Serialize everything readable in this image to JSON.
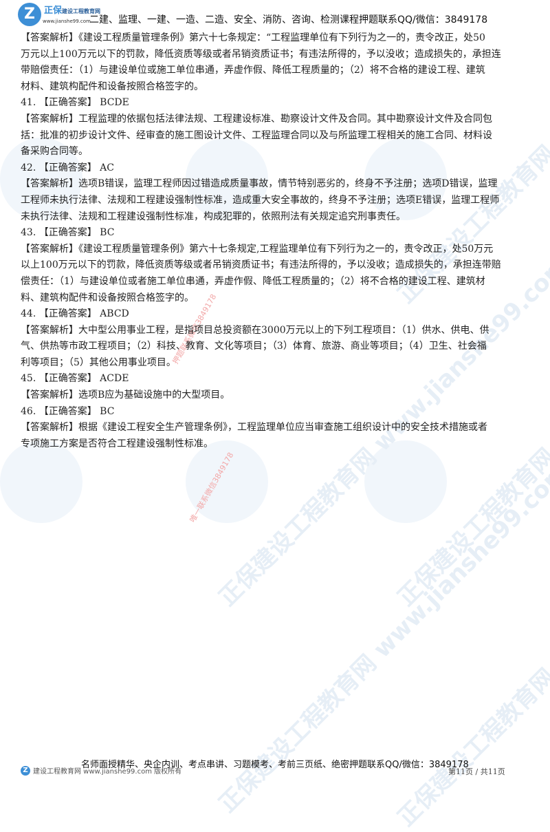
{
  "header": {
    "logo_brand": "正保",
    "logo_subtitle": "建设工程教育网",
    "logo_site": "www.jianshe99.com",
    "text": "二建、监理、一建、一造、二造、安全、消防、咨询、检测课程押题联系QQ/微信：3849178"
  },
  "watermarks": {
    "text": "正保建设工程教育网 www.jianshe99.com",
    "red_1": "唯一联系微信3849178",
    "red_2": "押题联系微信3849178"
  },
  "rows": [
    "【答案解析】《建设工程质量管理条例》第六十七条规定：“工程监理单位有下列行为之一的，责令改正，处50",
    "万元以上100万元以下的罚款，降低资质等级或者吊销资质证书；有违法所得的，予以没收；造成损失的，承担连",
    "带赔偿责任：（1）与建设单位或施工单位串通，弄虚作假、降低工程质量的；（2）将不合格的建设工程、建筑",
    "材料、建筑构配件和设备按照合格签字的。",
    "41. 【正确答案】 BCDE",
    "【答案解析】工程监理的依据包括法律法规、工程建设标准、勘察设计文件及合同。其中勘察设计文件及合同包",
    "括：批准的初步设计文件、经审查的施工图设计文件、工程监理合同以及与所监理工程相关的施工合同、材料设",
    "备采购合同等。",
    "42. 【正确答案】 AC",
    "【答案解析】选项B错误，监理工程师因过错造成质量事故，情节特别恶劣的，终身不予注册；选项D错误，监理",
    "工程师未执行法律、法规和工程建设强制性标准，造成重大安全事故的，终身不予注册；选项E错误，监理工程师",
    "未执行法律、法规和工程建设强制性标准，构成犯罪的，依照刑法有关规定追究刑事责任。",
    "43. 【正确答案】 BC",
    "【答案解析】《建设工程质量管理条例》第六十七条规定,工程监理单位有下列行为之一的，责令改正，处50万元",
    "以上100万元以下的罚款，降低资质等级或者吊销资质证书；有违法所得的，予以没收；造成损失的，承担连带赔",
    "偿责任：（1）与建设单位或者施工单位串通，弄虚作假、降低工程质量的；（2）将不合格的建设工程、建筑材",
    "料、建筑构配件和设备按照合格签字的。",
    "44. 【正确答案】 ABCD",
    "【答案解析】大中型公用事业工程，是指项目总投资额在3000万元以上的下列工程项目：（1）供水、供电、供",
    "气、供热等市政工程项目；（2）科技、教育、文化等项目；（3）体育、旅游、商业等项目；（4）卫生、社会福",
    "利等项目；（5）其他公用事业项目。",
    "45. 【正确答案】 ACDE",
    "【答案解析】选项B应为基础设施中的大型项目。",
    "46. 【正确答案】 BC",
    "【答案解析】根据《建设工程安全生产管理条例》，工程监理单位应当审查施工组织设计中的安全技术措施或者",
    "专项施工方案是否符合工程建设强制性标准。"
  ],
  "footer": {
    "main": "名师面授精华、央企内训、考点串讲、习题模考、考前三页纸、绝密押题联系QQ/微信：3849178",
    "left": "建设工程教育网 www.jianshe99.com 版权所有",
    "page": "第11页 / 共11页"
  },
  "colors": {
    "brand": "#3d8fd6",
    "watermark": "#e6eef6",
    "red_watermark": "#f2a7a7"
  }
}
